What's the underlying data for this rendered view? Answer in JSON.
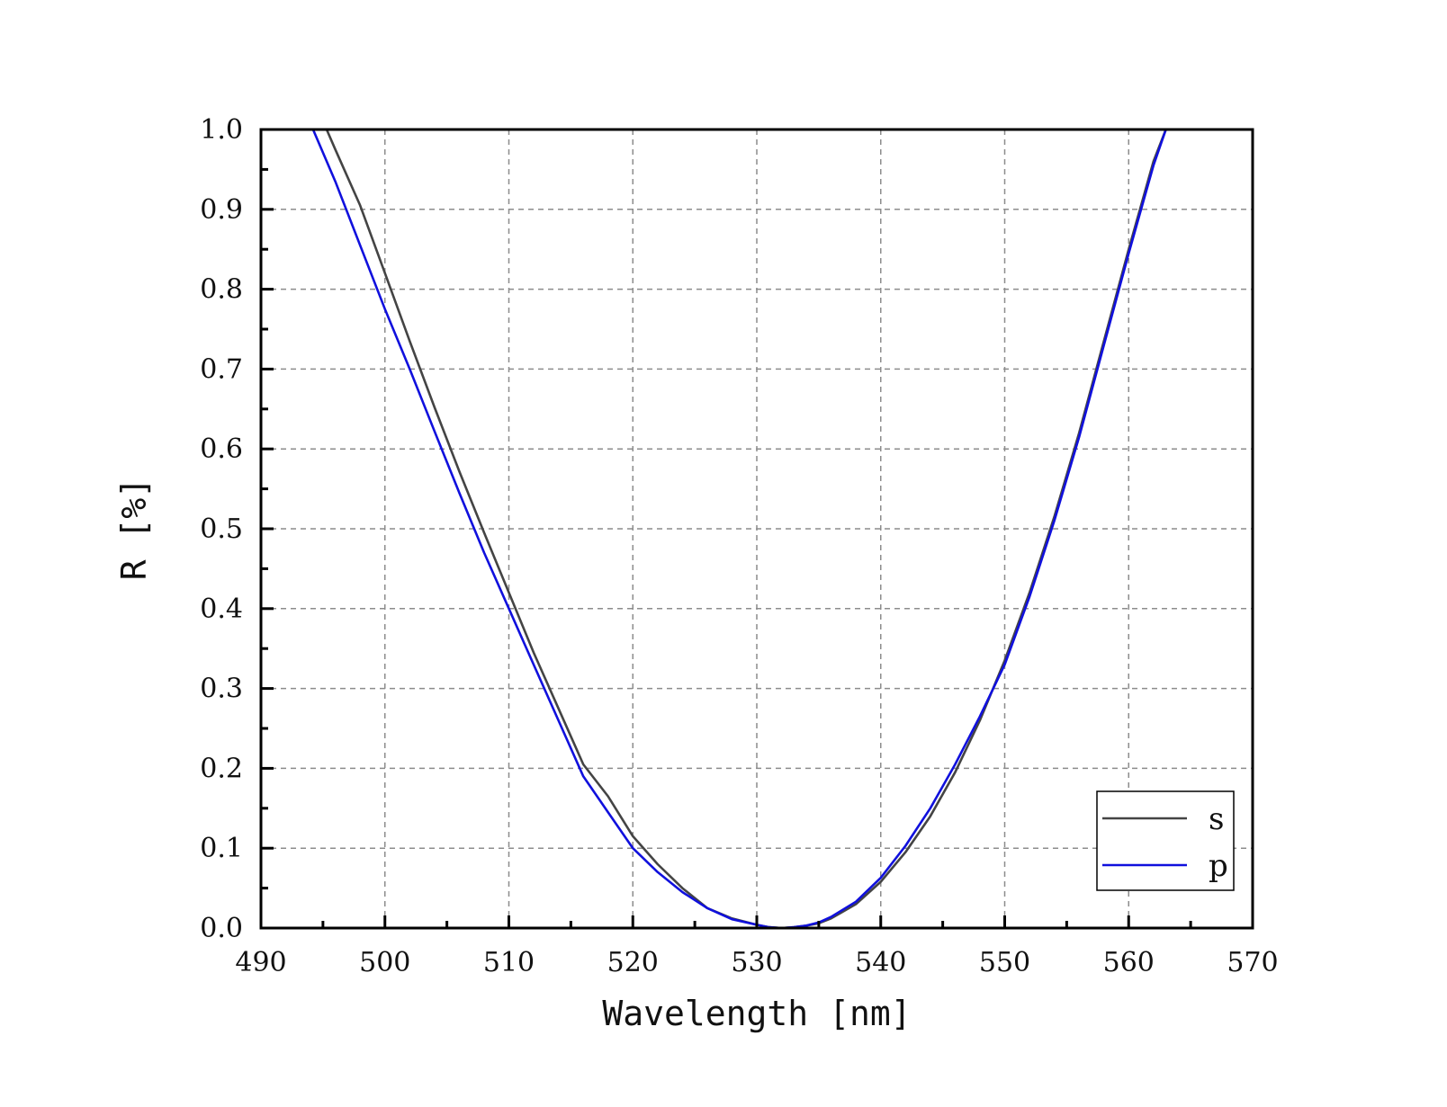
{
  "chart_data": {
    "type": "line",
    "title": "",
    "xlabel": "Wavelength [nm]",
    "ylabel": "R [%]",
    "xlim": [
      490,
      570
    ],
    "ylim": [
      0.0,
      1.0
    ],
    "x_ticks": [
      490,
      500,
      510,
      520,
      530,
      540,
      550,
      560,
      570
    ],
    "y_ticks": [
      "0.0",
      "0.1",
      "0.2",
      "0.3",
      "0.4",
      "0.5",
      "0.6",
      "0.7",
      "0.8",
      "0.9",
      "1.0"
    ],
    "grid": true,
    "legend_position": "bottom-right",
    "series": [
      {
        "name": "s",
        "color": "#444444",
        "x": [
          495.3,
          496,
          498,
          500,
          502,
          504,
          506,
          508,
          510,
          512,
          514,
          516,
          518,
          520,
          522,
          524,
          526,
          528,
          530,
          531,
          532,
          533,
          534,
          535,
          536,
          538,
          540,
          542,
          544,
          546,
          548,
          550,
          552,
          554,
          556,
          558,
          560,
          562,
          563
        ],
        "y": [
          1.0,
          0.975,
          0.905,
          0.82,
          0.735,
          0.652,
          0.572,
          0.495,
          0.42,
          0.345,
          0.275,
          0.205,
          0.165,
          0.115,
          0.08,
          0.05,
          0.025,
          0.012,
          0.004,
          0.001,
          0.0,
          0.001,
          0.003,
          0.006,
          0.012,
          0.03,
          0.058,
          0.095,
          0.14,
          0.195,
          0.26,
          0.335,
          0.42,
          0.515,
          0.62,
          0.735,
          0.85,
          0.96,
          1.0
        ]
      },
      {
        "name": "p",
        "color": "#1010dd",
        "x": [
          494.2,
          496,
          498,
          500,
          502,
          504,
          506,
          508,
          510,
          512,
          514,
          516,
          518,
          520,
          522,
          524,
          526,
          528,
          530,
          531,
          532,
          533,
          534,
          535,
          536,
          538,
          540,
          542,
          544,
          546,
          548,
          550,
          552,
          554,
          556,
          558,
          560,
          562,
          563
        ],
        "y": [
          1.0,
          0.935,
          0.855,
          0.775,
          0.7,
          0.622,
          0.545,
          0.47,
          0.4,
          0.33,
          0.26,
          0.19,
          0.145,
          0.1,
          0.07,
          0.045,
          0.025,
          0.011,
          0.004,
          0.001,
          0.0,
          0.001,
          0.003,
          0.007,
          0.014,
          0.033,
          0.063,
          0.103,
          0.15,
          0.205,
          0.265,
          0.33,
          0.415,
          0.51,
          0.615,
          0.73,
          0.845,
          0.955,
          1.0
        ]
      }
    ]
  }
}
